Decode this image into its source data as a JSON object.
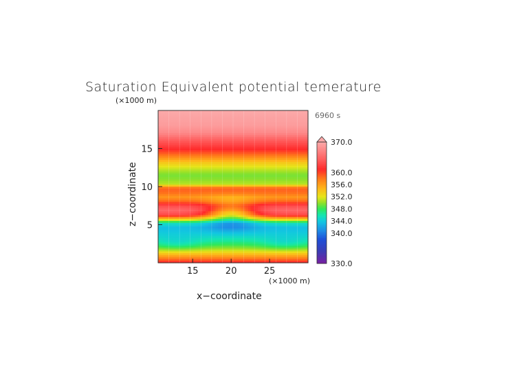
{
  "chart_data": {
    "type": "heatmap",
    "title": "Saturation Equivalent potential temerature",
    "time_label": "6960 s",
    "xlabel": "x−coordinate",
    "ylabel": "z−coordinate",
    "x_unit": "(×1000 m)",
    "y_unit": "(×1000 m)",
    "xlim": [
      10.5,
      30
    ],
    "ylim": [
      0,
      20
    ],
    "x_ticks": [
      "15",
      "20",
      "25"
    ],
    "y_ticks": [
      "5",
      "10",
      "15"
    ],
    "colorbar": {
      "range": [
        330,
        370
      ],
      "tick_labels": [
        "370.0",
        "360.0",
        "356.0",
        "352.0",
        "348.0",
        "344.0",
        "340.0",
        "330.0"
      ],
      "extend": "max"
    },
    "z_profile": {
      "z": [
        0.0,
        0.3,
        0.7,
        1.2,
        1.7,
        2.3,
        2.9,
        3.5,
        4.1,
        4.6,
        5.2,
        5.8,
        6.3,
        6.9,
        7.5,
        8.0,
        8.6,
        9.2,
        9.8,
        10.3,
        10.9,
        11.5,
        12.0,
        12.6,
        13.2,
        13.7,
        14.3,
        14.9,
        15.4,
        16.0,
        17.0,
        18.0,
        20.0
      ],
      "theta_es": [
        361.5,
        359.5,
        357.0,
        354.0,
        351.0,
        348.5,
        346.5,
        345.0,
        344.0,
        343.5,
        345.5,
        355.0,
        363.0,
        365.0,
        363.0,
        359.0,
        356.5,
        358.5,
        359.0,
        351.0,
        350.0,
        349.5,
        350.5,
        352.0,
        354.0,
        356.5,
        359.0,
        361.0,
        362.5,
        364.0,
        367.5,
        369.0,
        370.0
      ]
    },
    "features": [
      {
        "x": 20.0,
        "z": 5.0,
        "delta": -3.0
      },
      {
        "x": 20.0,
        "z": 6.5,
        "delta": -10.0
      },
      {
        "x": 20.0,
        "z": 8.0,
        "delta": -2.5
      },
      {
        "x": 13.0,
        "z": 2.5,
        "delta": -2.0
      },
      {
        "x": 27.0,
        "z": 2.5,
        "delta": -2.0
      }
    ]
  }
}
